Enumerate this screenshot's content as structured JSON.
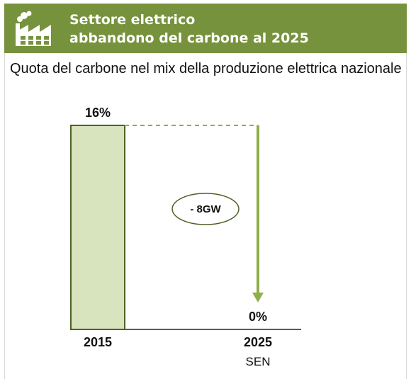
{
  "header": {
    "title_line1": "Settore elettrico",
    "title_line2": "abbandono del carbone al 2025",
    "icon": "factory-icon",
    "bg_color": "#76923c"
  },
  "subtitle": "Quota del carbone nel mix della produzione elettrica nazionale",
  "chart_data": {
    "type": "bar",
    "categories": [
      "2015",
      "2025"
    ],
    "category_notes": [
      "",
      "SEN"
    ],
    "values": [
      16,
      0
    ],
    "value_labels": [
      "16%",
      "0%"
    ],
    "unit": "%",
    "ylim": [
      0,
      16
    ],
    "grid": false,
    "annotation": "- 8GW",
    "bar_fill": "#d7e4bd",
    "bar_stroke": "#4f6228",
    "arrow_color": "#8db04a"
  }
}
